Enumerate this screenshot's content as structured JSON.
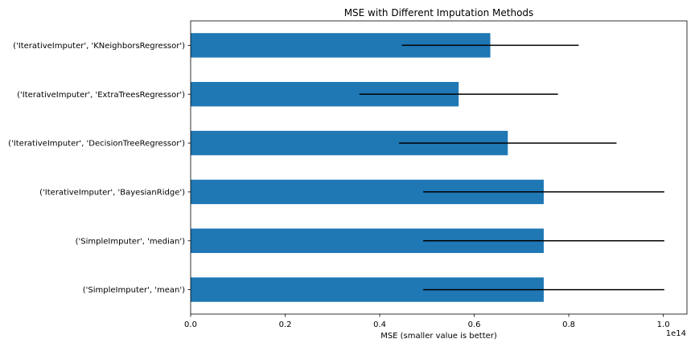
{
  "chart_data": {
    "type": "bar",
    "orientation": "horizontal",
    "title": "MSE with Different Imputation Methods",
    "xlabel": "MSE (smaller value is better)",
    "ylabel": "",
    "x_scale_label": "1e14",
    "xlim": [
      0,
      1.05
    ],
    "x_ticks": [
      "0.0",
      "0.2",
      "0.4",
      "0.6",
      "0.8",
      "1.0"
    ],
    "x_tick_values": [
      0,
      0.2,
      0.4,
      0.6,
      0.8,
      1.0
    ],
    "bar_color": "#1f77b4",
    "errorbar_color": "#000000",
    "grid": false,
    "categories": [
      "('SimpleImputer', 'mean')",
      "('SimpleImputer', 'median')",
      "('IterativeImputer', 'BayesianRidge')",
      "('IterativeImputer', 'DecisionTreeRegressor')",
      "('IterativeImputer', 'ExtraTreesRegressor')",
      "('IterativeImputer', 'KNeighborsRegressor')"
    ],
    "values": [
      0.747,
      0.747,
      0.747,
      0.671,
      0.567,
      0.634
    ],
    "errors": [
      0.255,
      0.255,
      0.255,
      0.23,
      0.21,
      0.187
    ]
  }
}
